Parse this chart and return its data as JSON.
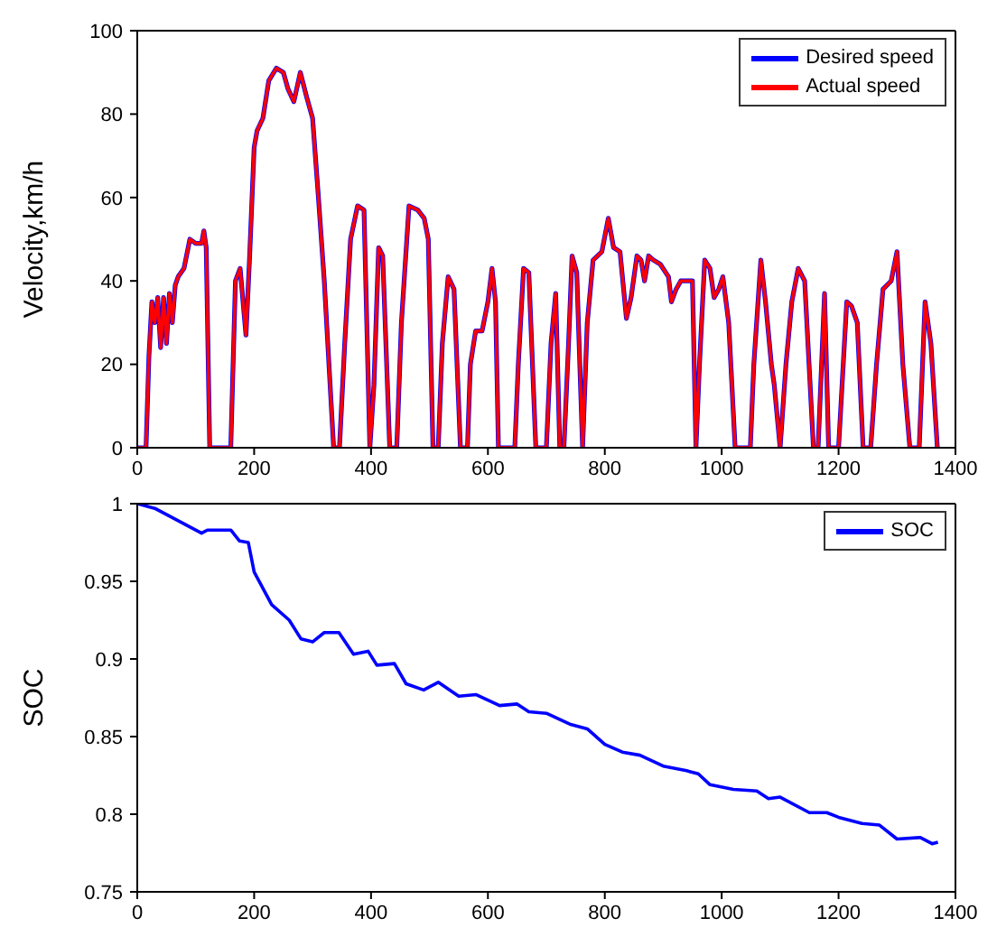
{
  "chart_data": [
    {
      "type": "line",
      "ylabel": "Velocity,km/h",
      "xlim": [
        0,
        1400
      ],
      "xticks": [
        0,
        200,
        400,
        600,
        800,
        1000,
        1200,
        1400
      ],
      "ylim": [
        0,
        100
      ],
      "yticks": [
        0,
        20,
        40,
        60,
        80,
        100
      ],
      "legend": "top right",
      "marker": "none",
      "line_style": "solid",
      "x": [
        0,
        15,
        20,
        25,
        30,
        35,
        40,
        45,
        50,
        55,
        60,
        65,
        70,
        80,
        90,
        100,
        110,
        114,
        118,
        124,
        160,
        168,
        176,
        186,
        192,
        200,
        205,
        215,
        225,
        238,
        250,
        258,
        268,
        279,
        290,
        300,
        310,
        320,
        336,
        346,
        355,
        365,
        377,
        388,
        398,
        405,
        413,
        420,
        432,
        444,
        452,
        465,
        480,
        491,
        498,
        506,
        515,
        522,
        532,
        542,
        553,
        565,
        570,
        579,
        590,
        600,
        607,
        613,
        618,
        646,
        652,
        661,
        670,
        682,
        690,
        700,
        708,
        716,
        723,
        730,
        738,
        744,
        752,
        762,
        770,
        780,
        795,
        806,
        815,
        826,
        837,
        845,
        855,
        862,
        868,
        875,
        883,
        895,
        909,
        914,
        922,
        930,
        945,
        950,
        956,
        962,
        971,
        980,
        987,
        995,
        1002,
        1012,
        1023,
        1049,
        1055,
        1067,
        1075,
        1085,
        1090,
        1100,
        1110,
        1120,
        1131,
        1142,
        1157,
        1165,
        1176,
        1183,
        1200,
        1214,
        1222,
        1232,
        1242,
        1255,
        1265,
        1276,
        1290,
        1300,
        1310,
        1322,
        1338,
        1348,
        1358,
        1369
      ],
      "series": [
        {
          "name": "Desired speed",
          "color": "#0000ff",
          "values": [
            0,
            0,
            22,
            35,
            30,
            36,
            24,
            36,
            25,
            37,
            30,
            39,
            41,
            43,
            50,
            49,
            49,
            52,
            48,
            0,
            0,
            40,
            43,
            27,
            45,
            72,
            76,
            79,
            88,
            91,
            90,
            86,
            83,
            90,
            84,
            79,
            60,
            40,
            0,
            0,
            25,
            50,
            58,
            57,
            0,
            15,
            48,
            46,
            0,
            0,
            30,
            58,
            57,
            55,
            50,
            0,
            0,
            25,
            41,
            38,
            0,
            0,
            20,
            28,
            28,
            35,
            43,
            35,
            0,
            0,
            20,
            43,
            42,
            0,
            0,
            0,
            25,
            37,
            0,
            0,
            25,
            46,
            42,
            0,
            30,
            45,
            47,
            55,
            48,
            47,
            31,
            36,
            46,
            45,
            40,
            46,
            45,
            44,
            41,
            35,
            38,
            40,
            40,
            40,
            0,
            20,
            45,
            43,
            36,
            38,
            41,
            30,
            0,
            0,
            20,
            45,
            35,
            20,
            15,
            0,
            20,
            35,
            43,
            40,
            0,
            0,
            37,
            0,
            0,
            35,
            34,
            30,
            0,
            0,
            20,
            38,
            40,
            47,
            20,
            0,
            0,
            35,
            25,
            0
          ]
        },
        {
          "name": "Actual speed",
          "color": "#ff0000",
          "values": [
            0,
            0,
            22,
            35,
            30,
            36,
            24,
            36,
            25,
            37,
            30,
            39,
            41,
            43,
            50,
            49,
            49,
            52,
            48,
            0,
            0,
            40,
            43,
            27,
            45,
            72,
            76,
            79,
            88,
            91,
            90,
            86,
            83,
            90,
            84,
            79,
            60,
            40,
            0,
            0,
            25,
            50,
            58,
            57,
            0,
            15,
            48,
            46,
            0,
            0,
            30,
            58,
            57,
            55,
            50,
            0,
            0,
            25,
            41,
            38,
            0,
            0,
            20,
            28,
            28,
            35,
            43,
            35,
            0,
            0,
            20,
            43,
            42,
            0,
            0,
            0,
            25,
            37,
            0,
            0,
            25,
            46,
            42,
            0,
            30,
            45,
            47,
            55,
            48,
            47,
            31,
            36,
            46,
            45,
            40,
            46,
            45,
            44,
            41,
            35,
            38,
            40,
            40,
            40,
            0,
            20,
            45,
            43,
            36,
            38,
            41,
            30,
            0,
            0,
            20,
            45,
            35,
            20,
            15,
            0,
            20,
            35,
            43,
            40,
            0,
            0,
            37,
            0,
            0,
            35,
            34,
            30,
            0,
            0,
            20,
            38,
            40,
            47,
            20,
            0,
            0,
            35,
            25,
            0
          ]
        }
      ]
    },
    {
      "type": "line",
      "ylabel": "SOC",
      "xlim": [
        0,
        1400
      ],
      "xticks": [
        0,
        200,
        400,
        600,
        800,
        1000,
        1200,
        1400
      ],
      "ylim": [
        0.75,
        1
      ],
      "yticks": [
        0.75,
        0.8,
        0.85,
        0.9,
        0.95,
        1
      ],
      "legend": "top right",
      "marker": "none",
      "line_style": "solid",
      "x": [
        0,
        30,
        110,
        120,
        160,
        175,
        190,
        200,
        230,
        260,
        280,
        300,
        320,
        345,
        370,
        395,
        410,
        440,
        460,
        490,
        515,
        550,
        580,
        620,
        650,
        670,
        700,
        740,
        770,
        800,
        830,
        860,
        900,
        940,
        960,
        980,
        1020,
        1060,
        1080,
        1100,
        1150,
        1180,
        1200,
        1240,
        1270,
        1300,
        1340,
        1360,
        1370
      ],
      "series": [
        {
          "name": "SOC",
          "color": "#0000ff",
          "values": [
            1.0,
            0.997,
            0.981,
            0.983,
            0.983,
            0.976,
            0.975,
            0.956,
            0.935,
            0.925,
            0.913,
            0.911,
            0.917,
            0.917,
            0.903,
            0.905,
            0.896,
            0.897,
            0.884,
            0.88,
            0.885,
            0.876,
            0.877,
            0.87,
            0.871,
            0.866,
            0.865,
            0.858,
            0.855,
            0.845,
            0.84,
            0.838,
            0.831,
            0.828,
            0.826,
            0.819,
            0.816,
            0.815,
            0.81,
            0.811,
            0.801,
            0.801,
            0.798,
            0.794,
            0.793,
            0.784,
            0.785,
            0.781,
            0.782
          ]
        }
      ]
    }
  ]
}
